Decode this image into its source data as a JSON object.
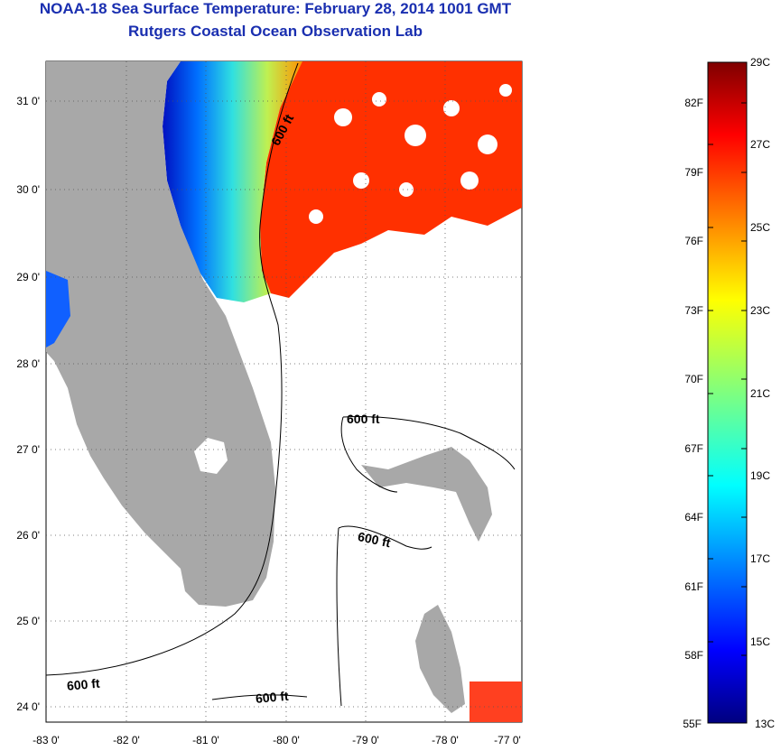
{
  "title": "NOAA-18 Sea Surface Temperature:  February 28, 2014 1001 GMT",
  "subtitle": "Rutgers Coastal Ocean Observation Lab",
  "map": {
    "lat_ticks": [
      "24 0'",
      "25 0'",
      "26 0'",
      "27 0'",
      "28 0'",
      "29 0'",
      "30 0'",
      "31 0'"
    ],
    "lon_ticks": [
      "-83 0'",
      "-82 0'",
      "-81 0'",
      "-80 0'",
      "-79 0'",
      "-78 0'",
      "-77 0'"
    ],
    "contour_labels": [
      "600 ft",
      "600 ft",
      "600 ft",
      "600 ft",
      "600 ft"
    ],
    "land_color": "#a8a8a8",
    "grid": true
  },
  "colorbar": {
    "celsius": [
      "29C",
      "27C",
      "25C",
      "23C",
      "21C",
      "19C",
      "17C",
      "15C",
      "13C"
    ],
    "fahrenheit": [
      "82F",
      "79F",
      "76F",
      "73F",
      "70F",
      "67F",
      "64F",
      "61F",
      "58F",
      "55F"
    ],
    "min_c": 13,
    "max_c": 29
  }
}
